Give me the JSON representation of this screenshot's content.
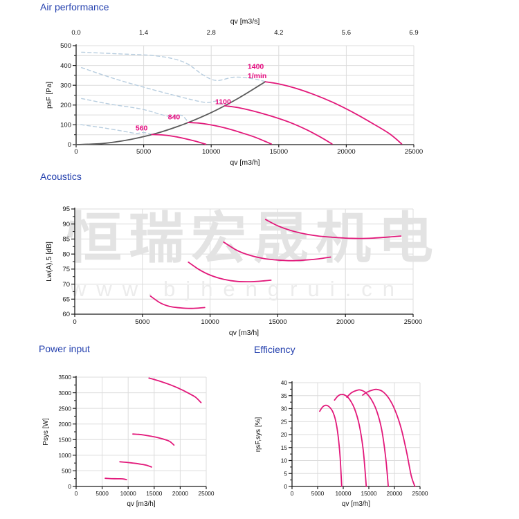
{
  "page": {
    "titles": {
      "air": "Air performance",
      "acoustics": "Acoustics",
      "power": "Power input",
      "efficiency": "Efficiency"
    }
  },
  "watermark": {
    "line1": "恒瑞宏晟机电",
    "line2": "www.bjhengrui.cn"
  },
  "colors": {
    "curve_pink": "#e2187a",
    "label_pink": "#e5097e",
    "dashed_blue": "#b7cddf",
    "system_gray": "#5a5a5a",
    "grid": "#dcdcdc",
    "axis": "#1a1a1a",
    "tick_text": "#111111",
    "title_blue": "#2440ae",
    "watermark_gray": "#e3e3e3",
    "watermark_light": "#ececec"
  },
  "chart_data": [
    {
      "id": "air",
      "type": "line",
      "title": "Air performance",
      "xlabel": "qv [m3/h]",
      "x2label": "qv [m3/s]",
      "ylabel": "psF [Pa]",
      "xlim": [
        0,
        25000
      ],
      "ylim": [
        0,
        500
      ],
      "xticks": [
        0,
        5000,
        10000,
        15000,
        20000,
        25000
      ],
      "x2tick_labels": [
        "0.0",
        "1.4",
        "2.8",
        "4.2",
        "5.6",
        "6.9"
      ],
      "yticks": [
        0,
        100,
        200,
        300,
        400,
        500
      ],
      "y_minor_step": 50,
      "y_grid_step": 50,
      "grid": true,
      "legend": "none",
      "series": [
        {
          "name": "stall-branch-1400",
          "style": "dashed",
          "points": [
            [
              400,
              467
            ],
            [
              3000,
              459
            ],
            [
              6000,
              448
            ],
            [
              8000,
              416
            ],
            [
              9400,
              352
            ],
            [
              10400,
              324
            ],
            [
              11700,
              341
            ],
            [
              13000,
              334
            ],
            [
              14000,
              319
            ]
          ]
        },
        {
          "name": "stall-branch-1100",
          "style": "dashed",
          "points": [
            [
              400,
              389
            ],
            [
              2800,
              334
            ],
            [
              5600,
              279
            ],
            [
              8200,
              233
            ],
            [
              9600,
              213
            ],
            [
              10400,
              219
            ],
            [
              11000,
              197
            ]
          ]
        },
        {
          "name": "stall-branch-840",
          "style": "dashed",
          "points": [
            [
              400,
              233
            ],
            [
              2400,
              206
            ],
            [
              4800,
              180
            ],
            [
              6400,
              150
            ],
            [
              7100,
              141
            ],
            [
              7800,
              148
            ],
            [
              8300,
              113
            ]
          ]
        },
        {
          "name": "stall-branch-560",
          "style": "dashed",
          "points": [
            [
              350,
              101
            ],
            [
              1900,
              86
            ],
            [
              3400,
              69
            ],
            [
              4400,
              57
            ],
            [
              5000,
              61
            ],
            [
              5600,
              52
            ]
          ]
        },
        {
          "name": "system-curve",
          "style": "gray",
          "points": [
            [
              0,
              0
            ],
            [
              2000,
              6
            ],
            [
              4000,
              26
            ],
            [
              6000,
              58
            ],
            [
              8000,
              104
            ],
            [
              10000,
              162
            ],
            [
              12000,
              234
            ],
            [
              14000,
              318
            ]
          ]
        },
        {
          "name": "fan-curve-560",
          "style": "pink",
          "points": [
            [
              5600,
              51
            ],
            [
              6400,
              49
            ],
            [
              7200,
              42
            ],
            [
              8000,
              31
            ],
            [
              8800,
              18
            ],
            [
              9600,
              2
            ]
          ]
        },
        {
          "name": "fan-curve-840",
          "style": "pink",
          "points": [
            [
              8300,
              112
            ],
            [
              9200,
              108
            ],
            [
              10200,
              97
            ],
            [
              11200,
              81
            ],
            [
              12200,
              61
            ],
            [
              13300,
              36
            ],
            [
              14450,
              3
            ]
          ]
        },
        {
          "name": "fan-curve-1100",
          "style": "pink",
          "points": [
            [
              11000,
              196
            ],
            [
              12000,
              187
            ],
            [
              13100,
              170
            ],
            [
              14400,
              145
            ],
            [
              15800,
              113
            ],
            [
              17100,
              74
            ],
            [
              18200,
              34
            ],
            [
              18950,
              3
            ]
          ]
        },
        {
          "name": "fan-curve-1400",
          "style": "pink",
          "points": [
            [
              14000,
              318
            ],
            [
              15000,
              307
            ],
            [
              16200,
              286
            ],
            [
              17500,
              256
            ],
            [
              19000,
              214
            ],
            [
              20500,
              163
            ],
            [
              22000,
              105
            ],
            [
              23200,
              55
            ],
            [
              24100,
              4
            ]
          ]
        }
      ],
      "annotations": [
        {
          "text": "560",
          "x": 4400,
          "y": 72
        },
        {
          "text": "840",
          "x": 6800,
          "y": 128
        },
        {
          "text": "1100",
          "x": 10300,
          "y": 205
        },
        {
          "text": "1400",
          "x": 12700,
          "y": 382
        },
        {
          "text": "1/min",
          "x": 12700,
          "y": 336
        }
      ]
    },
    {
      "id": "acoustics",
      "type": "line",
      "title": "Acoustics",
      "xlabel": "qv [m3/h]",
      "ylabel": "Lw(A),5 [dB]",
      "xlim": [
        0,
        25000
      ],
      "ylim": [
        60,
        95
      ],
      "xticks": [
        0,
        5000,
        10000,
        15000,
        20000,
        25000
      ],
      "yticks": [
        60,
        65,
        70,
        75,
        80,
        85,
        90,
        95
      ],
      "y_minor_step": 2.5,
      "y_grid_step": 5,
      "grid": true,
      "legend": "none",
      "series": [
        {
          "name": "noise-560",
          "style": "pink",
          "points": [
            [
              5600,
              66
            ],
            [
              6300,
              63.8
            ],
            [
              7000,
              62.6
            ],
            [
              7800,
              62.1
            ],
            [
              8600,
              61.9
            ],
            [
              9600,
              62.2
            ]
          ]
        },
        {
          "name": "noise-840",
          "style": "pink",
          "points": [
            [
              8400,
              77.3
            ],
            [
              9200,
              74.8
            ],
            [
              10000,
              73
            ],
            [
              11000,
              71.6
            ],
            [
              12000,
              70.9
            ],
            [
              13000,
              70.8
            ],
            [
              14000,
              71.1
            ],
            [
              14500,
              71.3
            ]
          ]
        },
        {
          "name": "noise-1100",
          "style": "pink",
          "points": [
            [
              11000,
              84
            ],
            [
              12000,
              81.2
            ],
            [
              13000,
              79.5
            ],
            [
              14000,
              78.5
            ],
            [
              15000,
              78
            ],
            [
              16000,
              77.8
            ],
            [
              17000,
              78
            ],
            [
              18000,
              78.4
            ],
            [
              18900,
              79
            ]
          ]
        },
        {
          "name": "noise-1400",
          "style": "pink",
          "points": [
            [
              14100,
              91.5
            ],
            [
              15000,
              89.4
            ],
            [
              16000,
              87.8
            ],
            [
              17000,
              86.7
            ],
            [
              18000,
              86
            ],
            [
              19000,
              85.6
            ],
            [
              20000,
              85.3
            ],
            [
              21000,
              85.2
            ],
            [
              22000,
              85.3
            ],
            [
              23000,
              85.6
            ],
            [
              24100,
              86
            ]
          ]
        }
      ],
      "annotations": []
    },
    {
      "id": "power",
      "type": "line",
      "title": "Power input",
      "xlabel": "qv [m3/h]",
      "ylabel": "Psys [W]",
      "xlim": [
        0,
        25000
      ],
      "ylim": [
        0,
        3500
      ],
      "xticks": [
        0,
        5000,
        10000,
        15000,
        20000,
        25000
      ],
      "yticks": [
        0,
        500,
        1000,
        1500,
        2000,
        2500,
        3000,
        3500
      ],
      "y_minor_step": 250,
      "y_grid_step": 500,
      "grid": true,
      "legend": "none",
      "series": [
        {
          "name": "power-560",
          "style": "pink",
          "points": [
            [
              5600,
              262
            ],
            [
              6500,
              252
            ],
            [
              7500,
              247
            ],
            [
              8500,
              245
            ],
            [
              9200,
              237
            ],
            [
              9700,
              218
            ]
          ]
        },
        {
          "name": "power-840",
          "style": "pink",
          "points": [
            [
              8400,
              790
            ],
            [
              9500,
              775
            ],
            [
              10500,
              757
            ],
            [
              11500,
              737
            ],
            [
              12500,
              712
            ],
            [
              13500,
              680
            ],
            [
              14500,
              622
            ]
          ]
        },
        {
          "name": "power-1100",
          "style": "pink",
          "points": [
            [
              10900,
              1680
            ],
            [
              12000,
              1668
            ],
            [
              13000,
              1648
            ],
            [
              14000,
              1620
            ],
            [
              15000,
              1588
            ],
            [
              16000,
              1550
            ],
            [
              17000,
              1505
            ],
            [
              18000,
              1440
            ],
            [
              18800,
              1325
            ]
          ]
        },
        {
          "name": "power-1400",
          "style": "pink",
          "points": [
            [
              14000,
              3470
            ],
            [
              15000,
              3425
            ],
            [
              16000,
              3375
            ],
            [
              17000,
              3320
            ],
            [
              18000,
              3260
            ],
            [
              19000,
              3195
            ],
            [
              20000,
              3120
            ],
            [
              21000,
              3040
            ],
            [
              22000,
              2950
            ],
            [
              23000,
              2850
            ],
            [
              24000,
              2685
            ]
          ]
        }
      ],
      "annotations": []
    },
    {
      "id": "efficiency",
      "type": "line",
      "title": "Efficiency",
      "xlabel": "qv [m3/h]",
      "ylabel": "ηsF,sys [%]",
      "xlim": [
        0,
        25000
      ],
      "ylim": [
        0,
        40
      ],
      "xticks": [
        0,
        5000,
        10000,
        15000,
        20000,
        25000
      ],
      "yticks": [
        0,
        5,
        10,
        15,
        20,
        25,
        30,
        35,
        40
      ],
      "y_minor_step": 2.5,
      "y_grid_step": 5,
      "grid": true,
      "legend": "none",
      "series": [
        {
          "name": "eff-560",
          "style": "pink",
          "points": [
            [
              5400,
              29
            ],
            [
              6000,
              30.7
            ],
            [
              6600,
              31.3
            ],
            [
              7200,
              30.8
            ],
            [
              7900,
              29
            ],
            [
              8500,
              25.5
            ],
            [
              9000,
              19.5
            ],
            [
              9400,
              11
            ],
            [
              9700,
              0
            ]
          ]
        },
        {
          "name": "eff-840",
          "style": "pink",
          "points": [
            [
              8300,
              33.3
            ],
            [
              9000,
              34.9
            ],
            [
              9700,
              35.5
            ],
            [
              10500,
              35
            ],
            [
              11300,
              33.4
            ],
            [
              12200,
              30
            ],
            [
              13100,
              24
            ],
            [
              13900,
              14
            ],
            [
              14500,
              0
            ]
          ]
        },
        {
          "name": "eff-1100",
          "style": "pink",
          "points": [
            [
              10700,
              34.4
            ],
            [
              11600,
              36.1
            ],
            [
              12600,
              37
            ],
            [
              13300,
              37.2
            ],
            [
              14300,
              36.3
            ],
            [
              15400,
              33.8
            ],
            [
              16500,
              29.3
            ],
            [
              17500,
              22
            ],
            [
              18300,
              11
            ],
            [
              18800,
              0
            ]
          ]
        },
        {
          "name": "eff-1400",
          "style": "pink",
          "points": [
            [
              13800,
              35.2
            ],
            [
              14700,
              36.4
            ],
            [
              15800,
              37.2
            ],
            [
              16600,
              37.4
            ],
            [
              17700,
              36.6
            ],
            [
              18900,
              34
            ],
            [
              20100,
              29.5
            ],
            [
              21300,
              22.5
            ],
            [
              22400,
              13
            ],
            [
              23300,
              4
            ],
            [
              24000,
              0
            ]
          ]
        }
      ],
      "annotations": []
    }
  ]
}
